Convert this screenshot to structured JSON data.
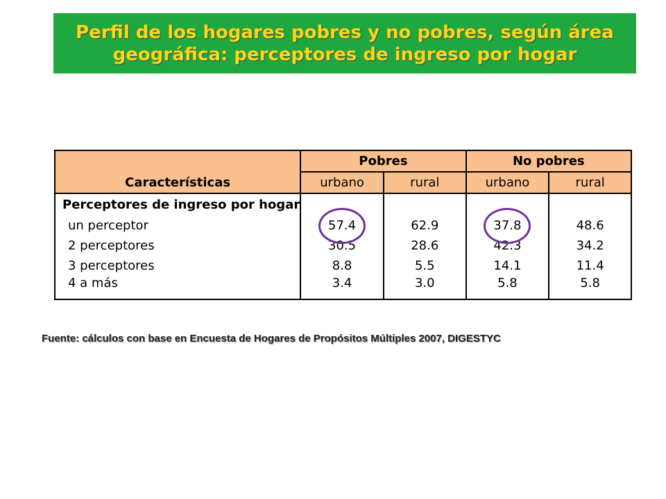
{
  "title": {
    "line1": "Perfil de los hogares pobres y no pobres, según área",
    "line2": "geográfica: perceptores de ingreso por hogar"
  },
  "table": {
    "characteristics_header": "Características",
    "group_headers": [
      "Pobres",
      "No pobres"
    ],
    "sub_headers": [
      "urbano",
      "rural",
      "urbano",
      "rural"
    ],
    "section_label": "Perceptores de ingreso por hogar",
    "rows": [
      {
        "label": "un perceptor",
        "values": [
          "57.4",
          "62.9",
          "37.8",
          "48.6"
        ]
      },
      {
        "label": "2 perceptores",
        "values": [
          "30.5",
          "28.6",
          "42.3",
          "34.2"
        ]
      },
      {
        "label": "3 perceptores",
        "values": [
          "8.8",
          "5.5",
          "14.1",
          "11.4"
        ]
      },
      {
        "label": "4 a más",
        "values": [
          "3.4",
          "3.0",
          "5.8",
          "5.8"
        ]
      }
    ],
    "highlight_color": "#7030a0"
  },
  "source": "Fuente: cálculos con base en Encuesta de Hogares de Propósitos Múltiples 2007, DIGESTYC",
  "colors": {
    "banner_bg": "#1fa83f",
    "banner_text": "#ffd51a",
    "header_bg": "#fac090"
  }
}
